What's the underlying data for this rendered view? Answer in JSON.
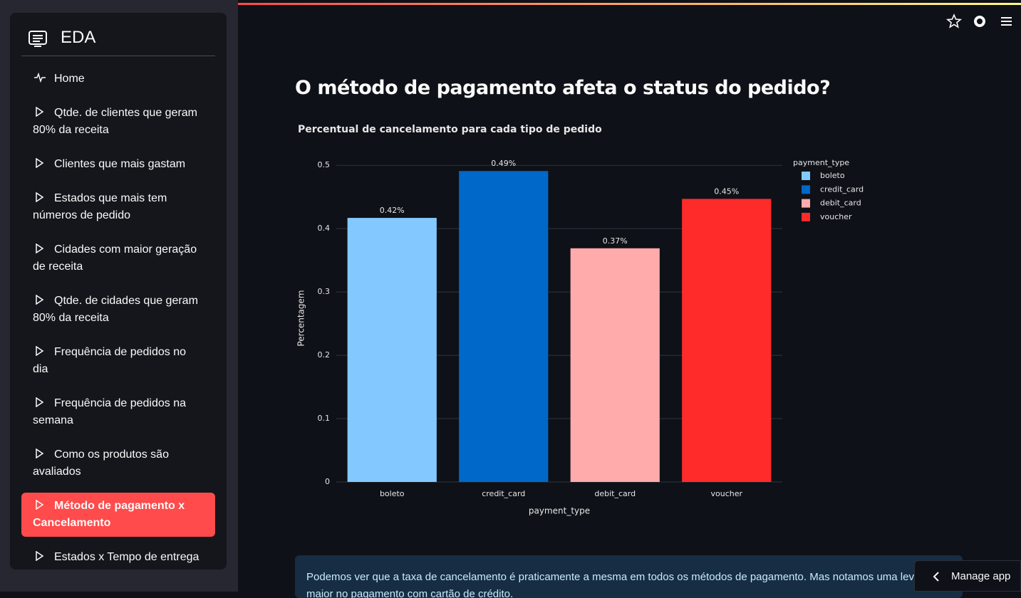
{
  "sidebar": {
    "title": "EDA",
    "active_index": 9,
    "items": [
      "Home",
      "Qtde. de clientes que geram 80% da receita",
      "Clientes que mais gastam",
      "Estados que mais tem números de pedido",
      "Cidades com maior geração de receita",
      "Qtde. de cidades que geram 80% da receita",
      "Frequência de pedidos no dia",
      "Frequência de pedidos na semana",
      "Como os produtos são avaliados",
      "Método de pagamento x Cancelamento",
      "Estados x Tempo de entrega"
    ]
  },
  "header": {
    "title": "O método de pagamento afeta o status do pedido?"
  },
  "chart_data": {
    "type": "bar",
    "title": "Percentual de cancelamento para cada tipo de pedido",
    "x_label": "payment_type",
    "y_label": "Percentagem",
    "legend_title": "payment_type",
    "legend": "right",
    "categories": [
      "boleto",
      "credit_card",
      "debit_card",
      "voucher"
    ],
    "values": [
      0.417,
      0.491,
      0.369,
      0.447
    ],
    "value_labels": [
      "0.42%",
      "0.49%",
      "0.37%",
      "0.45%"
    ],
    "colors": [
      "#83c9ff",
      "#0068c9",
      "#ffabab",
      "#ff2b2b"
    ],
    "ylim": [
      0,
      0.516
    ],
    "yticks": [
      0,
      0.1,
      0.2,
      0.3,
      0.4,
      0.5
    ],
    "grid": true
  },
  "info": {
    "text": "Podemos ver que a taxa de cancelamento é praticamente a mesma em todos os métodos de pagamento. Mas notamos uma leve maior no pagamento com cartão de crédito."
  },
  "toolbar": {
    "manage_app": "Manage app"
  }
}
